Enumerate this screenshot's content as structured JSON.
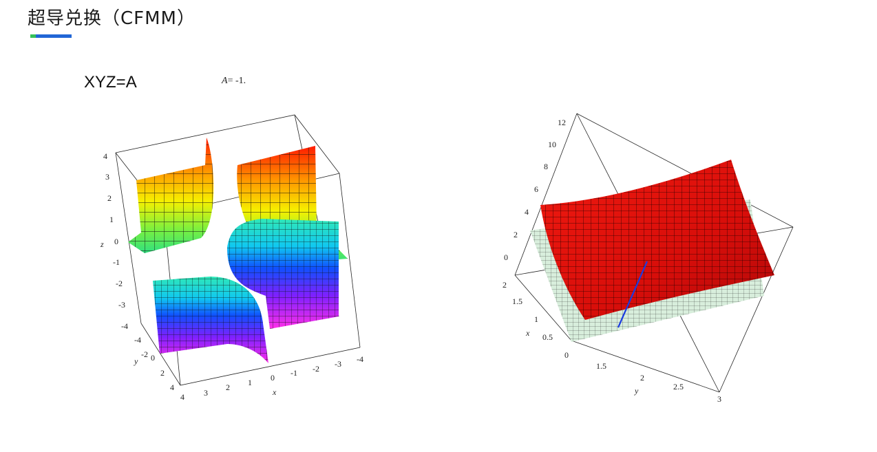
{
  "title": "超导兑换（CFMM）",
  "equation": "XYZ=A",
  "parameter": {
    "name": "A",
    "value": "= -1."
  },
  "left_plot": {
    "z_ticks": [
      "4",
      "3",
      "2",
      "1",
      "0",
      "-1",
      "-2",
      "-3",
      "-4"
    ],
    "y_ticks": [
      "-4",
      "-2",
      "0",
      "2",
      "4"
    ],
    "x_ticks": [
      "4",
      "3",
      "2",
      "1",
      "0",
      "-1",
      "-2",
      "-3",
      "-4"
    ],
    "axis_x": "x",
    "axis_y": "y",
    "axis_z": "z"
  },
  "right_plot": {
    "z_ticks": [
      "12",
      "10",
      "8",
      "6",
      "4",
      "2",
      "0"
    ],
    "x_ticks": [
      "2",
      "1.5",
      "1",
      "0.5",
      "0"
    ],
    "y_ticks": [
      "1.5",
      "2",
      "2.5",
      "3"
    ],
    "axis_x": "x",
    "axis_y": "y"
  },
  "colors": {
    "surface_red": "#e01010",
    "plane_green": "#d8eedc",
    "line_blue": "#1a3be0",
    "accent_blue": "#2166d6",
    "accent_green": "#35c05a"
  }
}
